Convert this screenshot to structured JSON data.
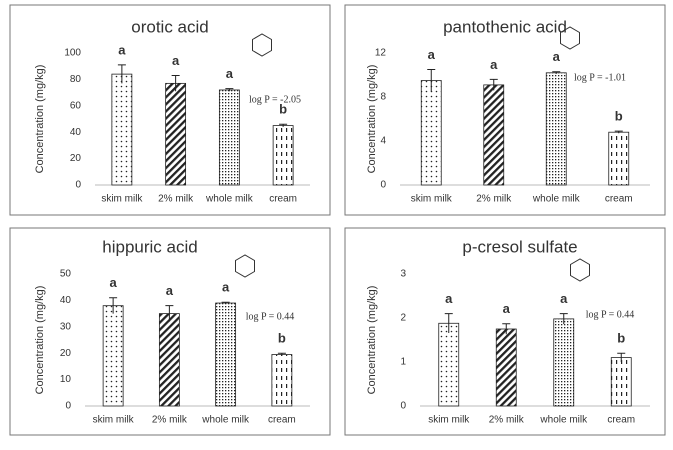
{
  "chart_data": [
    {
      "type": "bar",
      "title": "orotic acid",
      "y_label": "Concentration (mg/kg)",
      "annotation": "log P = -2.05",
      "categories": [
        "skim milk",
        "2% milk",
        "whole milk",
        "cream"
      ],
      "values": [
        84,
        77,
        72,
        45
      ],
      "errors": [
        7,
        6,
        1,
        1
      ],
      "letters": [
        "a",
        "a",
        "a",
        "b"
      ],
      "ylim": [
        0,
        100
      ],
      "yticks": [
        0,
        20,
        40,
        60,
        80,
        100
      ]
    },
    {
      "type": "bar",
      "title": "pantothenic acid",
      "y_label": "Concentration (mg/kg)",
      "annotation": "log P = -1.01",
      "categories": [
        "skim milk",
        "2% milk",
        "whole milk",
        "cream"
      ],
      "values": [
        9.5,
        9.1,
        10.2,
        4.8
      ],
      "errors": [
        1,
        0.5,
        0.1,
        0.1
      ],
      "letters": [
        "a",
        "a",
        "a",
        "b"
      ],
      "ylim": [
        0,
        12
      ],
      "yticks": [
        0,
        4,
        8,
        12
      ]
    },
    {
      "type": "bar",
      "title": "hippuric acid",
      "y_label": "Concentration (mg/kg)",
      "annotation": "log P = 0.44",
      "categories": [
        "skim milk",
        "2% milk",
        "whole milk",
        "cream"
      ],
      "values": [
        38,
        35,
        39,
        19.5
      ],
      "errors": [
        3,
        3,
        0.3,
        0.5
      ],
      "letters": [
        "a",
        "a",
        "a",
        "b"
      ],
      "ylim": [
        0,
        50
      ],
      "yticks": [
        0,
        10,
        20,
        30,
        40,
        50
      ]
    },
    {
      "type": "bar",
      "title": "p-cresol sulfate",
      "y_label": "Concentration (mg/kg)",
      "annotation": "log P = 0.44",
      "categories": [
        "skim milk",
        "2% milk",
        "whole milk",
        "cream"
      ],
      "values": [
        1.88,
        1.75,
        1.98,
        1.1
      ],
      "errors": [
        0.22,
        0.12,
        0.12,
        0.1
      ],
      "letters": [
        "a",
        "a",
        "a",
        "b"
      ],
      "ylim": [
        0,
        3
      ],
      "yticks": [
        0,
        1,
        2,
        3
      ]
    }
  ]
}
